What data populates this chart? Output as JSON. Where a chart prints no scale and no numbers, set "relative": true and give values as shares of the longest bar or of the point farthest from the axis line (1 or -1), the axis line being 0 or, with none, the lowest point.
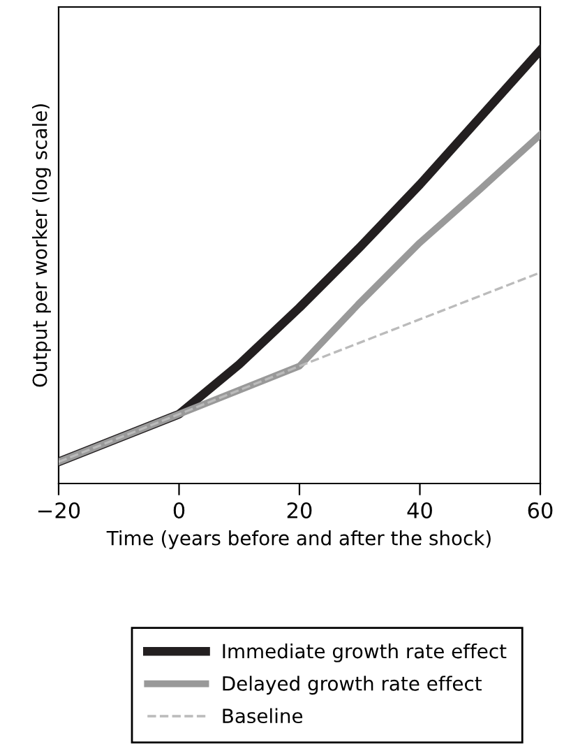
{
  "chart_data": {
    "type": "line",
    "relative": true,
    "xlabel": "Time (years before and after the shock)",
    "ylabel": "Output per worker (log scale)",
    "xlim": [
      -20,
      60
    ],
    "xticks": [
      {
        "value": -20,
        "label": "−20"
      },
      0,
      20,
      40,
      60
    ],
    "legend": "bottom",
    "grid": false,
    "marker": "none",
    "series": [
      {
        "name": "Immediate growth rate effect",
        "color": "#231f20",
        "line_style": "solid",
        "x": [
          -20,
          0,
          10,
          20,
          30,
          40,
          50,
          60
        ],
        "values": [
          0.05,
          0.16,
          0.275,
          0.406,
          0.545,
          0.69,
          0.845,
          1.0
        ]
      },
      {
        "name": "Delayed growth rate effect",
        "color": "#999999",
        "line_style": "solid",
        "x": [
          -20,
          0,
          20,
          30,
          40,
          50,
          60
        ],
        "values": [
          0.05,
          0.16,
          0.271,
          0.417,
          0.556,
          0.679,
          0.805
        ]
      },
      {
        "name": "Baseline",
        "color": "#bbbbbb",
        "line_style": "dashed",
        "x": [
          -20,
          0,
          20,
          60
        ],
        "values": [
          0.05,
          0.16,
          0.271,
          0.487
        ]
      }
    ]
  }
}
